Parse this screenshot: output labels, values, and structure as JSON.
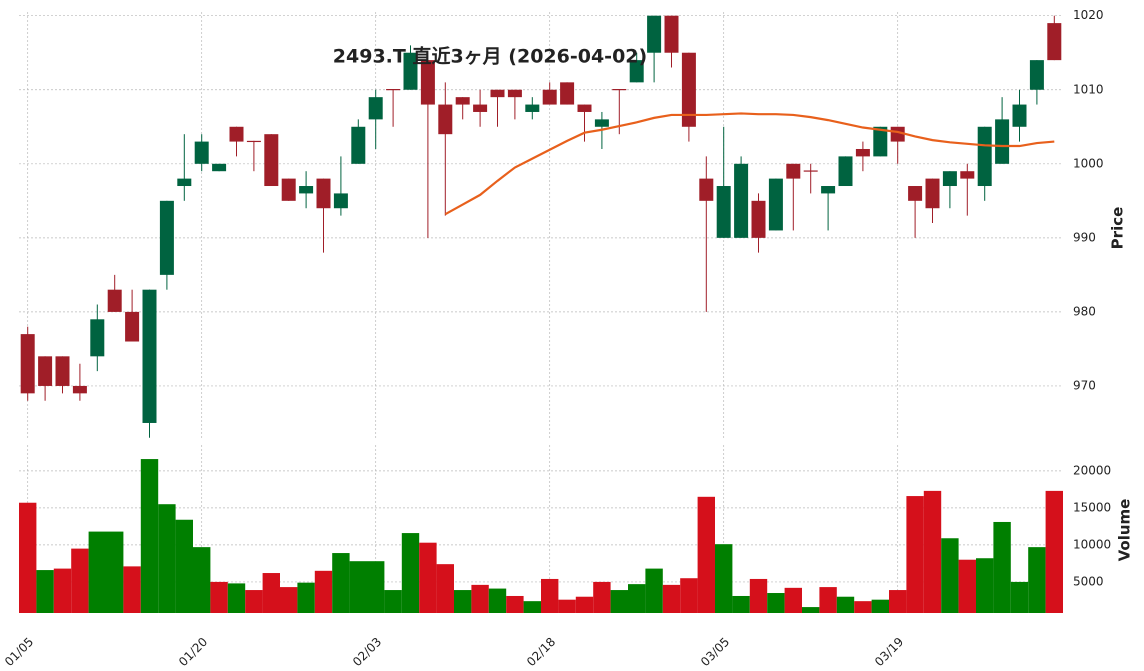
{
  "chart_data": [
    {
      "type": "candlestick",
      "title": "2493.T 直近3ヶ月 (2026-04-02)",
      "y_label": "Price",
      "categories": [
        "01/05",
        null,
        null,
        null,
        null,
        null,
        null,
        null,
        null,
        null,
        "01/20",
        null,
        null,
        null,
        null,
        null,
        null,
        null,
        null,
        null,
        "02/03",
        null,
        null,
        null,
        null,
        null,
        null,
        null,
        null,
        null,
        "02/18",
        null,
        null,
        null,
        null,
        null,
        null,
        null,
        null,
        null,
        "03/05",
        null,
        null,
        null,
        null,
        null,
        null,
        null,
        null,
        null,
        "03/19",
        null,
        null,
        null,
        null,
        null,
        null,
        null,
        null,
        null
      ],
      "open": [
        977,
        974,
        974,
        970,
        974,
        983,
        980,
        965,
        985,
        997,
        1000,
        999,
        1005,
        1003.1,
        1004,
        998,
        996,
        998,
        994,
        1000,
        1006,
        1010.1,
        1010,
        1014,
        1008,
        1009,
        1008,
        1010,
        1010,
        1007,
        1010,
        1011,
        1008,
        1005,
        1010.1,
        1011,
        1015,
        1020,
        1015,
        998,
        990,
        990,
        995,
        991,
        1000,
        999.1,
        996,
        997,
        1002,
        1001,
        1005,
        997,
        998,
        997,
        999,
        997,
        1000,
        1005,
        1010,
        1019
      ],
      "high": [
        978,
        974,
        974,
        973,
        981,
        985,
        983,
        983,
        995,
        1004,
        1004,
        1000,
        1005,
        1003.1,
        1004,
        998,
        999,
        998,
        1001,
        1006,
        1010,
        1010.1,
        1016,
        1014,
        1011,
        1009,
        1010,
        1010,
        1010,
        1009,
        1011,
        1011,
        1008,
        1007,
        1010.1,
        1015,
        1020,
        1020,
        1015,
        1001,
        1005,
        1001,
        996,
        998,
        1000,
        1000,
        997,
        1001,
        1003,
        1005,
        1005,
        997,
        998,
        999,
        1000,
        1005,
        1009,
        1010,
        1014,
        1020
      ],
      "low": [
        968,
        968,
        969,
        968,
        972,
        980,
        976,
        963,
        983,
        995,
        999,
        999,
        1001,
        999,
        997,
        995,
        994,
        988,
        993,
        1000,
        1002,
        1005,
        1010,
        990,
        993,
        1006,
        1005,
        1005,
        1006,
        1006,
        1008,
        1008,
        1003,
        1002,
        1004,
        1011,
        1011,
        1013,
        1003,
        980,
        990,
        990,
        988,
        991,
        991,
        996,
        991,
        997,
        999,
        1001,
        1000,
        990,
        992,
        994,
        993,
        995,
        1000,
        1003,
        1008,
        1014
      ],
      "close": [
        969,
        970,
        970,
        969,
        979,
        980,
        976,
        983,
        995,
        998,
        1003,
        1000,
        1003,
        1003,
        997,
        995,
        997,
        994,
        996,
        1005,
        1009,
        1010,
        1015,
        1008,
        1004,
        1008,
        1007,
        1009,
        1009,
        1008,
        1008,
        1008,
        1007,
        1006,
        1010,
        1014,
        1020,
        1015,
        1005,
        995,
        997,
        1000,
        990,
        998,
        998,
        999,
        997,
        1001,
        1001,
        1005,
        1003,
        995,
        994,
        999,
        998,
        1005,
        1006,
        1008,
        1014,
        1014
      ],
      "up_color": "#006340",
      "down_color": "#a01e28",
      "ma": {
        "color": "#e8601c",
        "values": [
          null,
          null,
          null,
          null,
          null,
          null,
          null,
          null,
          null,
          null,
          null,
          null,
          null,
          null,
          null,
          null,
          null,
          null,
          null,
          null,
          null,
          null,
          null,
          null,
          993.2,
          994.5,
          995.8,
          997.7,
          999.5,
          1000.7,
          1001.9,
          1003.1,
          1004.2,
          1004.6,
          1005.1,
          1005.6,
          1006.2,
          1006.6,
          1006.6,
          1006.6,
          1006.7,
          1006.8,
          1006.7,
          1006.7,
          1006.6,
          1006.3,
          1005.9,
          1005.4,
          1004.9,
          1004.6,
          1004.3,
          1003.7,
          1003.2,
          1002.9,
          1002.7,
          1002.5,
          1002.4,
          1002.4,
          1002.8,
          1003.0
        ]
      },
      "ylim": [
        962.7,
        1020.5
      ],
      "yticks": [
        970,
        980,
        990,
        1000,
        1010,
        1020
      ],
      "grid": true
    },
    {
      "type": "bar",
      "y_label": "Volume",
      "values": [
        15700,
        6600,
        6800,
        9500,
        11800,
        11800,
        7100,
        21600,
        15500,
        13400,
        9700,
        5000,
        4800,
        3900,
        6200,
        4300,
        4900,
        6500,
        8900,
        7800,
        7800,
        3900,
        11600,
        10300,
        7400,
        3900,
        4600,
        4100,
        3100,
        2400,
        5400,
        2600,
        3000,
        5000,
        3900,
        4700,
        6800,
        4600,
        5500,
        16500,
        10100,
        3100,
        5400,
        3500,
        4200,
        1600,
        4300,
        3000,
        2400,
        2600,
        3900,
        16600,
        17300,
        10900,
        8000,
        8200,
        13100,
        5000,
        9700,
        17300
      ],
      "colors": [
        "#d5101b",
        "#007f00",
        "#d5101b",
        "#d5101b",
        "#007f00",
        "#007f00",
        "#d5101b",
        "#007f00",
        "#007f00",
        "#007f00",
        "#007f00",
        "#d5101b",
        "#007f00",
        "#d5101b",
        "#d5101b",
        "#d5101b",
        "#007f00",
        "#d5101b",
        "#007f00",
        "#007f00",
        "#007f00",
        "#007f00",
        "#007f00",
        "#d5101b",
        "#d5101b",
        "#007f00",
        "#d5101b",
        "#007f00",
        "#d5101b",
        "#007f00",
        "#d5101b",
        "#d5101b",
        "#d5101b",
        "#d5101b",
        "#007f00",
        "#007f00",
        "#007f00",
        "#d5101b",
        "#d5101b",
        "#d5101b",
        "#007f00",
        "#007f00",
        "#d5101b",
        "#007f00",
        "#d5101b",
        "#007f00",
        "#d5101b",
        "#007f00",
        "#d5101b",
        "#007f00",
        "#d5101b",
        "#d5101b",
        "#d5101b",
        "#007f00",
        "#d5101b",
        "#007f00",
        "#007f00",
        "#007f00",
        "#007f00",
        "#d5101b"
      ],
      "ylim": [
        800,
        23500
      ],
      "yticks": [
        5000,
        10000,
        15000,
        20000
      ],
      "grid": true
    }
  ]
}
